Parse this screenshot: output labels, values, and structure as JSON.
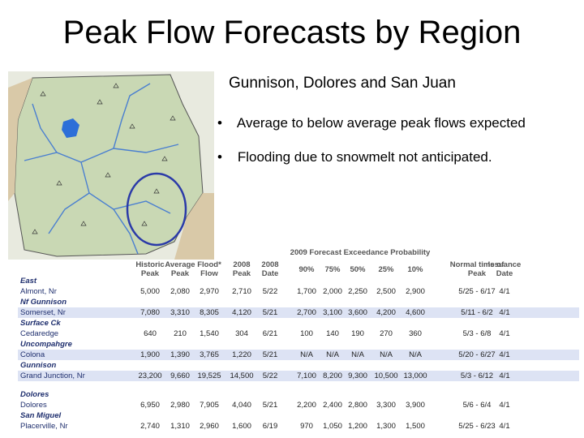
{
  "title": "Peak Flow Forecasts by Region",
  "subtitle": "Gunnison, Dolores and San Juan",
  "bullets": [
    "Average to below average peak flows expected",
    "Flooding due to snowmelt not anticipated."
  ],
  "table": {
    "span_header": "2009 Forecast Exceedance Probability",
    "columns": [
      "Historic Peak",
      "Average Peak",
      "Flood* Flow",
      "2008 Peak",
      "2008 Date",
      "90%",
      "75%",
      "50%",
      "25%",
      "10%",
      "Normal time of Peak",
      "Issuance Date"
    ],
    "groups": [
      {
        "name": "East",
        "rows": [
          [
            "Almont, Nr",
            "5,000",
            "2,080",
            "2,970",
            "2,710",
            "5/22",
            "1,700",
            "2,000",
            "2,250",
            "2,500",
            "2,900",
            "5/25 - 6/17",
            "4/1"
          ]
        ]
      },
      {
        "name": "Nf Gunnison",
        "rows": [
          [
            "Somerset, Nr",
            "7,080",
            "3,310",
            "8,305",
            "4,120",
            "5/21",
            "2,700",
            "3,100",
            "3,600",
            "4,200",
            "4,600",
            "5/11 - 6/2",
            "4/1"
          ]
        ]
      },
      {
        "name": "Surface Ck",
        "rows": [
          [
            "Cedaredge",
            "640",
            "210",
            "1,540",
            "304",
            "6/21",
            "100",
            "140",
            "190",
            "270",
            "360",
            "5/3 - 6/8",
            "4/1"
          ]
        ]
      },
      {
        "name": "Uncompahgre",
        "rows": [
          [
            "Colona",
            "1,900",
            "1,390",
            "3,765",
            "1,220",
            "5/21",
            "N/A",
            "N/A",
            "N/A",
            "N/A",
            "N/A",
            "5/20 - 6/27",
            "4/1"
          ]
        ]
      },
      {
        "name": "Gunnison",
        "rows": [
          [
            "Grand Junction, Nr",
            "23,200",
            "9,660",
            "19,525",
            "14,500",
            "5/22",
            "7,100",
            "8,200",
            "9,300",
            "10,500",
            "13,000",
            "5/3 - 6/12",
            "4/1"
          ]
        ]
      },
      {
        "name": "Dolores",
        "rows": [
          [
            "Dolores",
            "6,950",
            "2,980",
            "7,905",
            "4,040",
            "5/21",
            "2,200",
            "2,400",
            "2,800",
            "3,300",
            "3,900",
            "5/6 - 6/4",
            "4/1"
          ]
        ]
      },
      {
        "name": "San Miguel",
        "rows": [
          [
            "Placerville, Nr",
            "2,740",
            "1,310",
            "2,960",
            "1,600",
            "6/19",
            "970",
            "1,050",
            "1,200",
            "1,300",
            "1,500",
            "5/25 - 6/23",
            "4/1"
          ]
        ]
      }
    ]
  }
}
